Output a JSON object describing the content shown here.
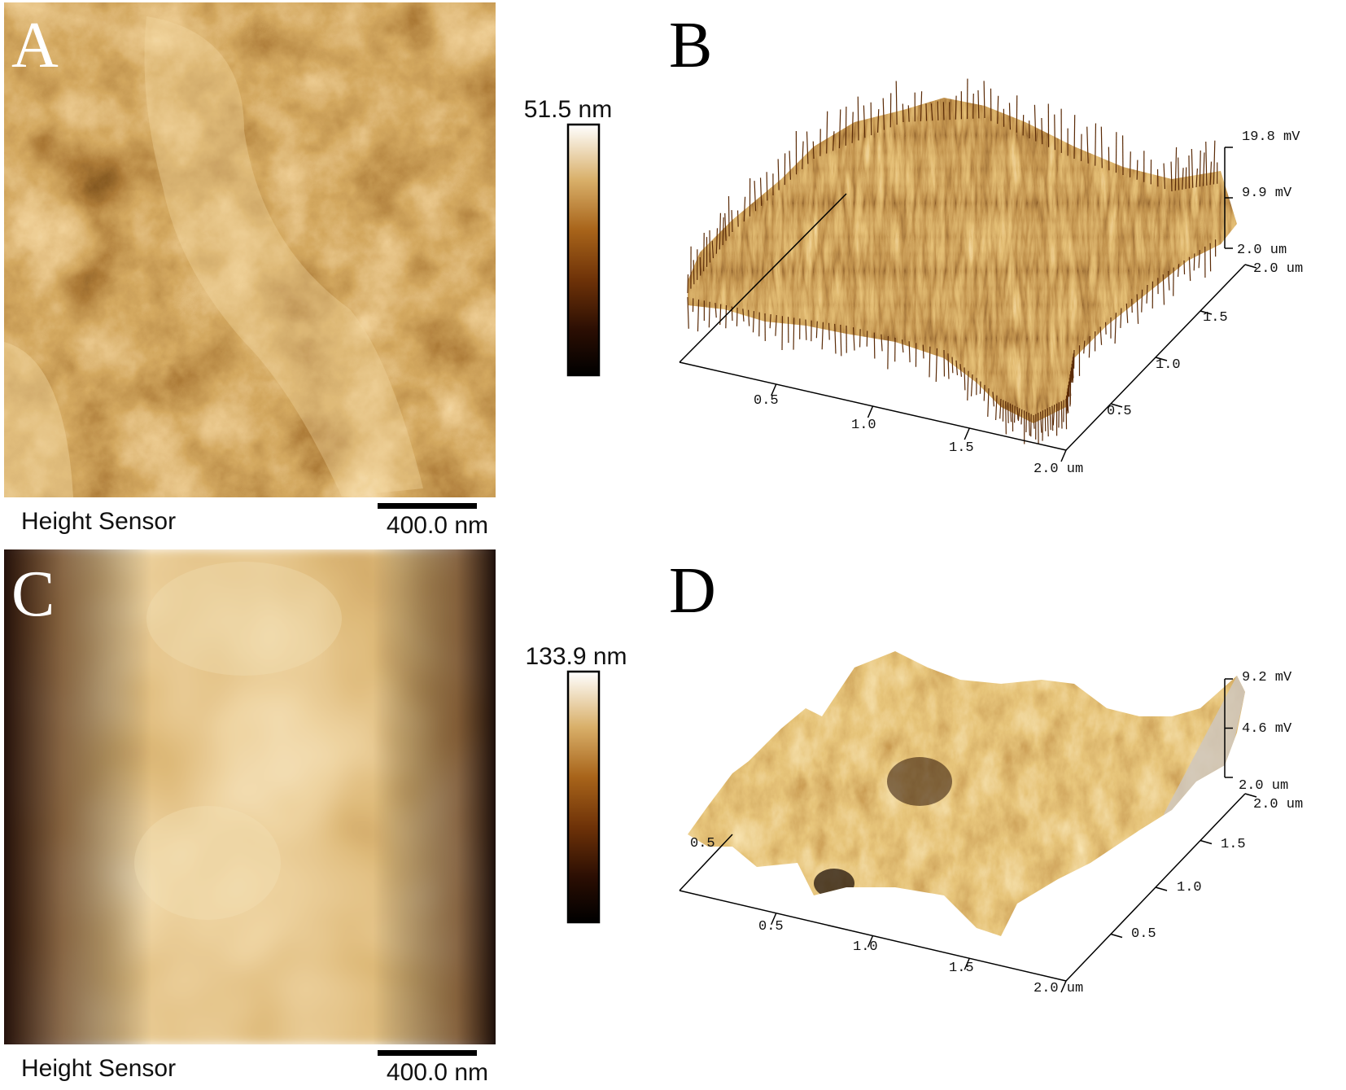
{
  "figure": {
    "panels": [
      {
        "letter": "A",
        "kind": "height-map",
        "caption": "Height Sensor",
        "scale_bar_label": "400.0 nm",
        "colorbar_max_label": "51.5 nm",
        "texture": "rough-fibrous"
      },
      {
        "letter": "B",
        "kind": "surface-3d",
        "z_ticks": [
          "19.8 mV",
          "9.9 mV"
        ],
        "z_corner_label": "2.0 um",
        "x_ticks": [
          "0.5",
          "1.0",
          "1.5"
        ],
        "x_end_label": "2.0 um",
        "y_ticks": [
          "0.5",
          "1.0",
          "1.5"
        ],
        "y_end_label": "2.0 um",
        "texture": "spiky"
      },
      {
        "letter": "C",
        "kind": "height-map",
        "caption": "Height Sensor",
        "scale_bar_label": "400.0 nm",
        "colorbar_max_label": "133.9 nm",
        "texture": "smooth"
      },
      {
        "letter": "D",
        "kind": "surface-3d",
        "z_ticks": [
          "9.2 mV",
          "4.6 mV"
        ],
        "z_corner_label": "2.0 um",
        "x_ticks": [
          "0.5",
          "1.0",
          "1.5"
        ],
        "x_end_label": "2.0 um",
        "y_ticks": [
          "0.5",
          "1.0",
          "1.5"
        ],
        "y_end_label": "2.0 um",
        "back_tick": "0.5",
        "texture": "hilly"
      }
    ],
    "colors": {
      "dark": "#1a0a02",
      "mid_brown": "#7a3e0d",
      "gold": "#c08a3e",
      "light": "#f6ecd6"
    }
  }
}
